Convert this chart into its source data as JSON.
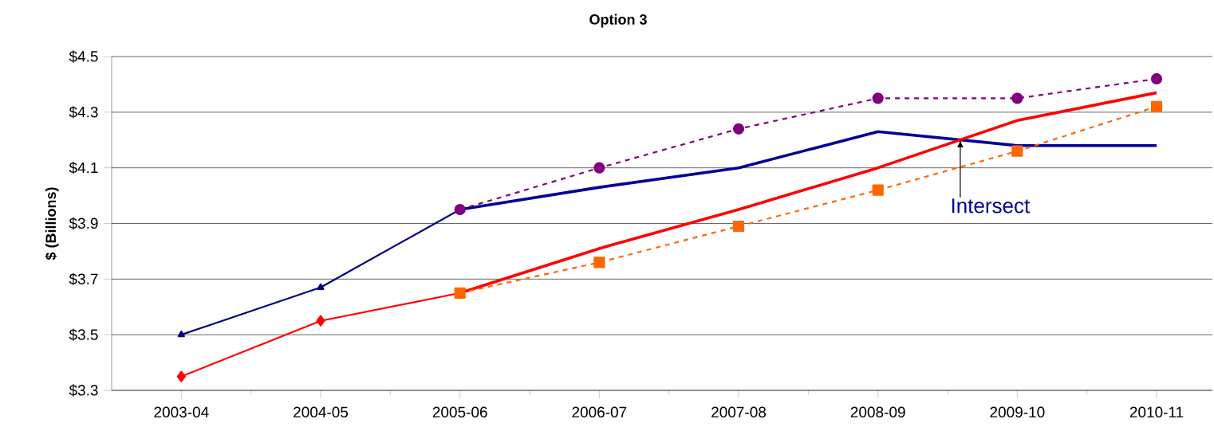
{
  "chart_data": {
    "type": "line",
    "title": "Option 3",
    "ylabel": "$ (Billions)",
    "categories": [
      "2003-04",
      "2004-05",
      "2005-06",
      "2006-07",
      "2007-08",
      "2008-09",
      "2009-10",
      "2010-11"
    ],
    "ylim": [
      3.3,
      4.5
    ],
    "yticks": [
      {
        "value": 3.3,
        "label": "$3.3"
      },
      {
        "value": 3.5,
        "label": "$3.5"
      },
      {
        "value": 3.7,
        "label": "$3.7"
      },
      {
        "value": 3.9,
        "label": "$3.9"
      },
      {
        "value": 4.1,
        "label": "$4.1"
      },
      {
        "value": 4.3,
        "label": "$4.3"
      },
      {
        "value": 4.5,
        "label": "$4.5"
      }
    ],
    "grid": "y",
    "series": [
      {
        "color": "#000099",
        "marker": "none",
        "line_style": "solid",
        "values": [
          null,
          null,
          3.95,
          4.03,
          4.1,
          4.23,
          4.18,
          4.18
        ]
      },
      {
        "color": "#ff0000",
        "marker": "none",
        "line_style": "solid",
        "values": [
          null,
          null,
          3.65,
          3.81,
          3.95,
          4.1,
          4.27,
          4.37
        ]
      },
      {
        "color": "#000080",
        "marker": "triangle",
        "line_style": "solid",
        "values": [
          3.5,
          3.67,
          3.95,
          null,
          null,
          null,
          null,
          null
        ]
      },
      {
        "color": "#ff0000",
        "marker": "diamond",
        "line_style": "solid",
        "values": [
          3.35,
          3.55,
          3.65,
          null,
          null,
          null,
          null,
          null
        ]
      },
      {
        "color": "#800080",
        "marker": "circle",
        "line_style": "dashed",
        "values": [
          null,
          null,
          3.95,
          4.1,
          4.24,
          4.35,
          4.35,
          4.42
        ]
      },
      {
        "color": "#ff6600",
        "marker": "square",
        "line_style": "dashed",
        "values": [
          null,
          null,
          3.65,
          3.76,
          3.89,
          4.02,
          4.16,
          4.32
        ]
      }
    ],
    "annotations": [
      {
        "text": "Intersect",
        "y": 4.2
      }
    ]
  }
}
